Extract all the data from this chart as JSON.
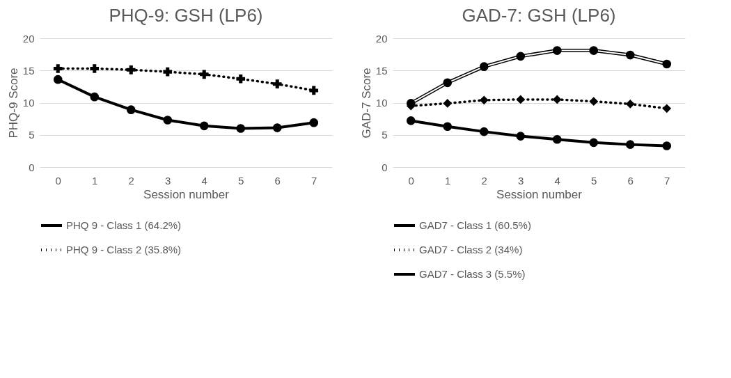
{
  "chart_data": [
    {
      "type": "line",
      "title": "PHQ-9: GSH (LP6)",
      "xlabel": "Session number",
      "ylabel": "PHQ-9 Score",
      "categories": [
        "0",
        "1",
        "2",
        "3",
        "4",
        "5",
        "6",
        "7"
      ],
      "ylim": [
        0,
        20
      ],
      "yticks": [
        0,
        5,
        10,
        15,
        20
      ],
      "grid": "y",
      "legend": "bottom",
      "series": [
        {
          "name": "PHQ 9 - Class 1 (64.2%)",
          "color": "#000000",
          "marker": "circle",
          "line_style": "solid",
          "values": [
            13.6,
            10.9,
            8.9,
            7.3,
            6.4,
            6.0,
            6.1,
            6.9
          ]
        },
        {
          "name": "PHQ 9 - Class 2 (35.8%)",
          "color": "#000000",
          "marker": "cross",
          "line_style": "dotted",
          "values": [
            15.3,
            15.3,
            15.1,
            14.8,
            14.4,
            13.7,
            12.9,
            11.9
          ]
        }
      ]
    },
    {
      "type": "line",
      "title": "GAD-7: GSH (LP6)",
      "xlabel": "Session number",
      "ylabel": "GAD-7 Score",
      "categories": [
        "0",
        "1",
        "2",
        "3",
        "4",
        "5",
        "6",
        "7"
      ],
      "ylim": [
        0,
        20
      ],
      "yticks": [
        0,
        5,
        10,
        15,
        20
      ],
      "grid": "y",
      "legend": "bottom",
      "series": [
        {
          "name": "GAD7 - Class 1 (60.5%)",
          "color": "#000000",
          "marker": "circle",
          "line_style": "solid",
          "values": [
            7.2,
            6.3,
            5.5,
            4.8,
            4.3,
            3.8,
            3.5,
            3.3
          ]
        },
        {
          "name": "GAD7 - Class 2 (34%)",
          "color": "#000000",
          "marker": "diamond",
          "line_style": "dotted",
          "values": [
            9.5,
            9.9,
            10.4,
            10.5,
            10.5,
            10.2,
            9.8,
            9.1
          ]
        },
        {
          "name": "GAD7 - Class 3 (5.5%)",
          "color": "#000000",
          "marker": "circle",
          "line_style": "solid",
          "values": [
            9.9,
            13.1,
            15.6,
            17.2,
            18.1,
            18.1,
            17.4,
            16.0
          ]
        }
      ]
    }
  ]
}
